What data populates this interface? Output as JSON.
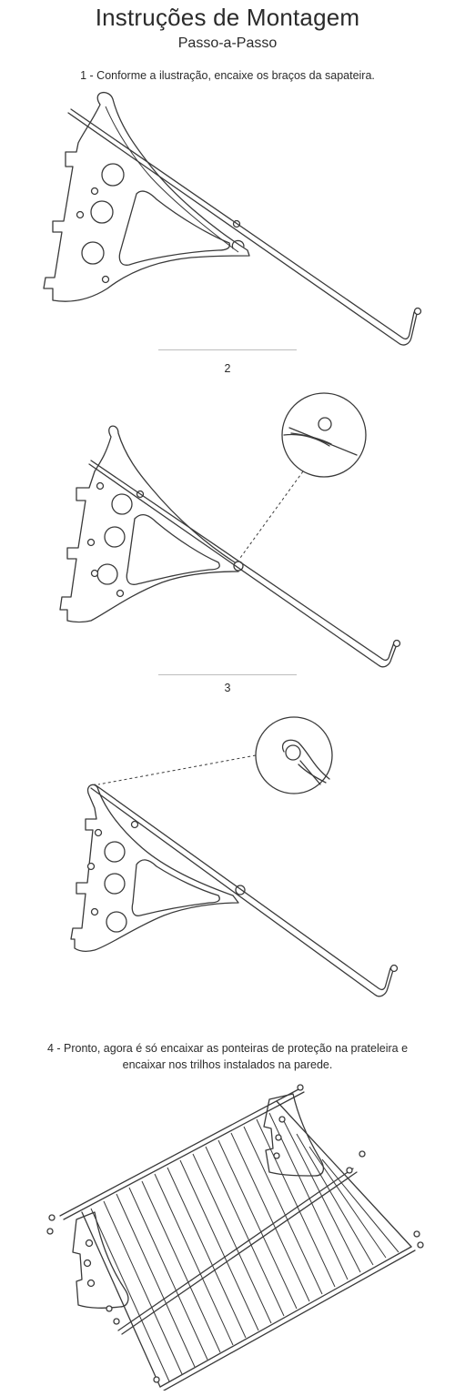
{
  "header": {
    "title": "Instruções de Montagem",
    "subtitle": "Passo-a-Passo"
  },
  "steps": [
    {
      "label": "1 - Conforme a ilustração, encaixe os braços da sapateira."
    },
    {
      "label": "2"
    },
    {
      "label": "3"
    },
    {
      "line1": "4 - Pronto, agora é só encaixar as ponteiras de proteção na prateleira e",
      "line2": "encaixar nos trilhos instalados na parede."
    }
  ]
}
